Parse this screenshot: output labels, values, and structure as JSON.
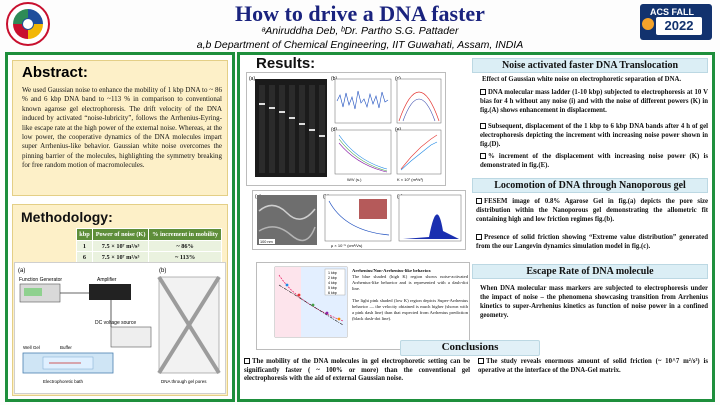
{
  "header": {
    "title": "How to drive a DNA faster",
    "authors": "ᵃAniruddha Deb, ᵇDr. Partho S.G. Pattader",
    "department": "a,b Department of Chemical Engineering, IIT Guwahati, Assam, INDIA",
    "badge_label": "ACS FALL",
    "badge_year": "2022"
  },
  "abstract": {
    "heading": "Abstract:",
    "body": "We used Gaussian noise to enhance the mobility of 1 kbp DNA to ~ 86 % and 6 kbp DNA band to ~113 % in comparison to conventional known agarose gel electrophoresis. The drift velocity of the DNA induced by activated “noise-lubricity”, follows the Arrhenius-Eyring-like escape rate at the high power of the external noise. Whereas, at the low power, the cooperative dynamics of the DNA molecules impart super Arrhenius-like behavior. Gaussian white noise overcomes the pinning barrier of the molecules, highlighting the symmetry breaking for free random motion of macromolecules."
  },
  "methodology": {
    "heading": "Methodology:",
    "table": {
      "headers": [
        "kbp",
        "Power of noise (K)",
        "% increment in mobility"
      ],
      "rows": [
        [
          "1",
          "7.5 × 10⁷ m²/s³",
          "~ 86%"
        ],
        [
          "6",
          "7.5 × 10⁷ m²/s³",
          "~ 113%"
        ]
      ]
    },
    "setup_labels": {
      "panel_a": "(a)",
      "panel_b": "(b)",
      "function_generator": "Function Generator",
      "amplifier": "Amplifier",
      "dc_source": "DC voltage source",
      "well_gel": "Well Gel",
      "buffer": "Buffer",
      "bath": "Electrophoretic bath",
      "gel_pores": "DNA through gel pores"
    }
  },
  "results": {
    "heading": "Results:",
    "fig_labels": [
      "(a)",
      "(b)",
      "(c)",
      "(d)",
      "(e)"
    ],
    "fig2_labels": [
      "(a)",
      "(b)",
      "(c)"
    ],
    "legend_entries": [
      "1 kbp",
      "2 kbp",
      "4 kbp",
      "5 kbp",
      "6 kbp"
    ],
    "axis_w": "W/V (s.)",
    "axis_k": "K × 10⁷ (m²/s³)",
    "axis_b": "μ × 10⁻⁵ (cm²/Vs)",
    "arrhenius_note_title": "Arrhenius/Non-Arrhenius-like behavior.",
    "arrhenius_note_1": "The blue shaded (high K) region shows noise-activated Arrhenius-like behavior and is represented with a dash-dot line.",
    "arrhenius_note_2": "The light pink shaded (low K) region depicts Super-Arrhenius behavior — the velocity obtained is much higher (shown with a pink dash line) than that expected from Arrhenius prediction (black dash-dot line).",
    "scale_bar": "100 nm"
  },
  "noise_section": {
    "heading": "Noise activated faster DNA Translocation",
    "lead": "Effect of Gaussian white noise on electrophoretic separation of DNA.",
    "bullets": [
      "DNA molecular mass ladder (1-10 kbp) subjected to electrophoresis at 10 V bias for 4 h without any noise (i) and with the noise of different powers (K) in fig.(A) shows enhancement in displacement.",
      "Subsequent, displacement of the 1 kbp to 6 kbp DNA bands after 4 h of gel electrophoresis depicting the increment with increasing noise power shown in fig.(D).",
      "% increment of the displacement with increasing noise power (K) is demonstrated in fig.(E)."
    ]
  },
  "locomotion_section": {
    "heading": "Locomotion of DNA through Nanoporous gel",
    "bullets": [
      "FESEM image of 0.8% Agarose Gel in fig.(a) depicts the pore size distribution within the Nanoporous gel demonstrating the allometric fit containing high and low friction regimes fig.(b).",
      "Presence of solid friction showing “Extreme value distribution” generated from the our Langevin dynamics simulation model in fig.(c)."
    ]
  },
  "escape_section": {
    "heading": "Escape Rate of DNA molecule",
    "body": "When DNA molecular mass markers are subjected to electrophoresis under the impact of noise – the phenomena showcasing transition from Arrhenius kinetics to super-Arrhenius kinetics as function of noise power in a confined geometry."
  },
  "conclusions": {
    "heading": "Conclusions",
    "left": "The mobility of the DNA molecules in gel electrophoretic setting can be significantly faster ( ~ 100% or more) than the conventional gel electrophoresis with the aid of external Gaussian noise.",
    "right": "The study reveals enormous amount of solid friction (~ 10^7 m²/s³) is operative at the interface of the DNA-Gel matrix."
  },
  "colors": {
    "border_green": "#1e8f3c",
    "title_navy": "#1a237e",
    "panel_cream": "#fdf0c8",
    "section_blue": "#dbeef5",
    "table_green": "#5e8e3a"
  }
}
